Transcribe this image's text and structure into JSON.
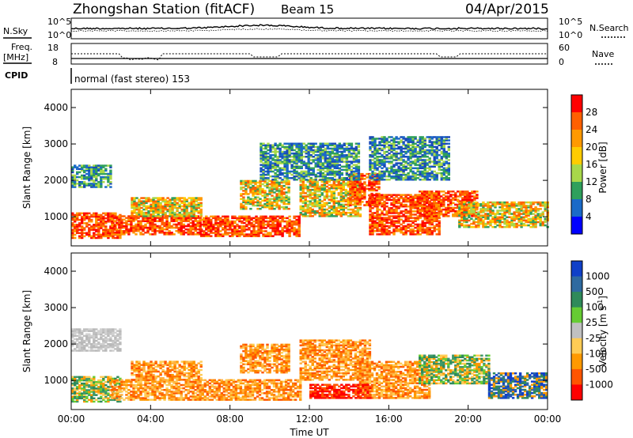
{
  "header": {
    "station": "Zhongshan Station (fitACF)",
    "beam": "Beam 15",
    "date": "04/Apr/2015"
  },
  "sky_panel": {
    "left_label": "N.Sky",
    "right_label": "N.Search",
    "y_ticks_left": [
      "10^5",
      "10^0"
    ],
    "y_ticks_right": [
      "10^5",
      "10^0"
    ]
  },
  "freq_panel": {
    "left_label_line1": "Freq.",
    "left_label_line2": "[MHz]",
    "y_ticks_left": [
      "18",
      "8"
    ],
    "right_label": "Nave",
    "y_ticks_right": [
      "60",
      "0"
    ]
  },
  "cpid": {
    "label": "CPID",
    "value": "normal (fast stereo) 153"
  },
  "chart_data": [
    {
      "type": "heatmap",
      "name": "power",
      "ylabel": "Slant Range [km]",
      "xlabel": "",
      "yticks": [
        "4000",
        "3000",
        "2000",
        "1000"
      ],
      "ylim": [
        200,
        4500
      ],
      "xlim": [
        "00:00",
        "24:00"
      ],
      "colorbar": {
        "label": "Power [dB]",
        "ticks": [
          "28",
          "24",
          "20",
          "16",
          "12",
          "8",
          "4"
        ],
        "colors": [
          "#ff0000",
          "#ff6000",
          "#ff9900",
          "#ffcc00",
          "#a8d84a",
          "#2fa05c",
          "#1a6ac8",
          "#0000ff"
        ]
      },
      "regions": [
        {
          "t0": 0.0,
          "t1": 2.5,
          "r0": 400,
          "r1": 1100,
          "level": "high"
        },
        {
          "t0": 0.0,
          "t1": 2.0,
          "r0": 1800,
          "r1": 2400,
          "level": "low"
        },
        {
          "t0": 2.0,
          "t1": 6.5,
          "r0": 500,
          "r1": 1000,
          "level": "high"
        },
        {
          "t0": 3.0,
          "t1": 6.5,
          "r0": 1000,
          "r1": 1500,
          "level": "mid"
        },
        {
          "t0": 6.5,
          "t1": 11.5,
          "r0": 450,
          "r1": 1000,
          "level": "high"
        },
        {
          "t0": 8.5,
          "t1": 11.0,
          "r0": 1200,
          "r1": 2000,
          "level": "mid"
        },
        {
          "t0": 11.5,
          "t1": 14.5,
          "r0": 1000,
          "r1": 2000,
          "level": "mid"
        },
        {
          "t0": 14.0,
          "t1": 15.5,
          "r0": 1300,
          "r1": 2200,
          "level": "high"
        },
        {
          "t0": 15.0,
          "t1": 18.5,
          "r0": 500,
          "r1": 1600,
          "level": "high"
        },
        {
          "t0": 17.5,
          "t1": 20.5,
          "r0": 1000,
          "r1": 1700,
          "level": "high"
        },
        {
          "t0": 19.5,
          "t1": 24.0,
          "r0": 700,
          "r1": 1400,
          "level": "mid"
        },
        {
          "t0": 9.5,
          "t1": 14.5,
          "r0": 2000,
          "r1": 3000,
          "level": "low"
        },
        {
          "t0": 15.0,
          "t1": 19.0,
          "r0": 2000,
          "r1": 3200,
          "level": "low"
        }
      ]
    },
    {
      "type": "heatmap",
      "name": "velocity",
      "ylabel": "Slant Range [km]",
      "xlabel": "Time UT",
      "yticks": [
        "4000",
        "3000",
        "2000",
        "1000"
      ],
      "ylim": [
        200,
        4500
      ],
      "xticks": [
        "00:00",
        "04:00",
        "08:00",
        "12:00",
        "16:00",
        "20:00",
        "00:00"
      ],
      "xlim": [
        "00:00",
        "24:00"
      ],
      "colorbar": {
        "label": "Velocity [m s",
        "label_sup": "-1",
        "label_end": "]",
        "ticks": [
          "1000",
          "500",
          "100",
          "25",
          "-25",
          "-100",
          "-500",
          "-1000"
        ],
        "colors": [
          "#1040c8",
          "#2f6aa0",
          "#2f8a5a",
          "#66cc33",
          "#c0c0c0",
          "#ffcc55",
          "#ff9900",
          "#ff5500",
          "#ff0000"
        ]
      },
      "regions": [
        {
          "t0": 0.0,
          "t1": 2.5,
          "r0": 400,
          "r1": 1100,
          "level": "green"
        },
        {
          "t0": 0.0,
          "t1": 2.5,
          "r0": 1800,
          "r1": 2400,
          "level": "grey"
        },
        {
          "t0": 2.0,
          "t1": 11.5,
          "r0": 450,
          "r1": 1000,
          "level": "orange"
        },
        {
          "t0": 3.0,
          "t1": 6.5,
          "r0": 1000,
          "r1": 1500,
          "level": "orange"
        },
        {
          "t0": 8.5,
          "t1": 11.0,
          "r0": 1200,
          "r1": 2000,
          "level": "orange"
        },
        {
          "t0": 11.5,
          "t1": 15.0,
          "r0": 1000,
          "r1": 2100,
          "level": "orange"
        },
        {
          "t0": 14.5,
          "t1": 18.0,
          "r0": 500,
          "r1": 1500,
          "level": "orange"
        },
        {
          "t0": 17.5,
          "t1": 21.0,
          "r0": 900,
          "r1": 1700,
          "level": "green"
        },
        {
          "t0": 21.0,
          "t1": 24.0,
          "r0": 500,
          "r1": 1200,
          "level": "blue"
        },
        {
          "t0": 12.0,
          "t1": 15.0,
          "r0": 500,
          "r1": 900,
          "level": "red"
        }
      ]
    }
  ]
}
